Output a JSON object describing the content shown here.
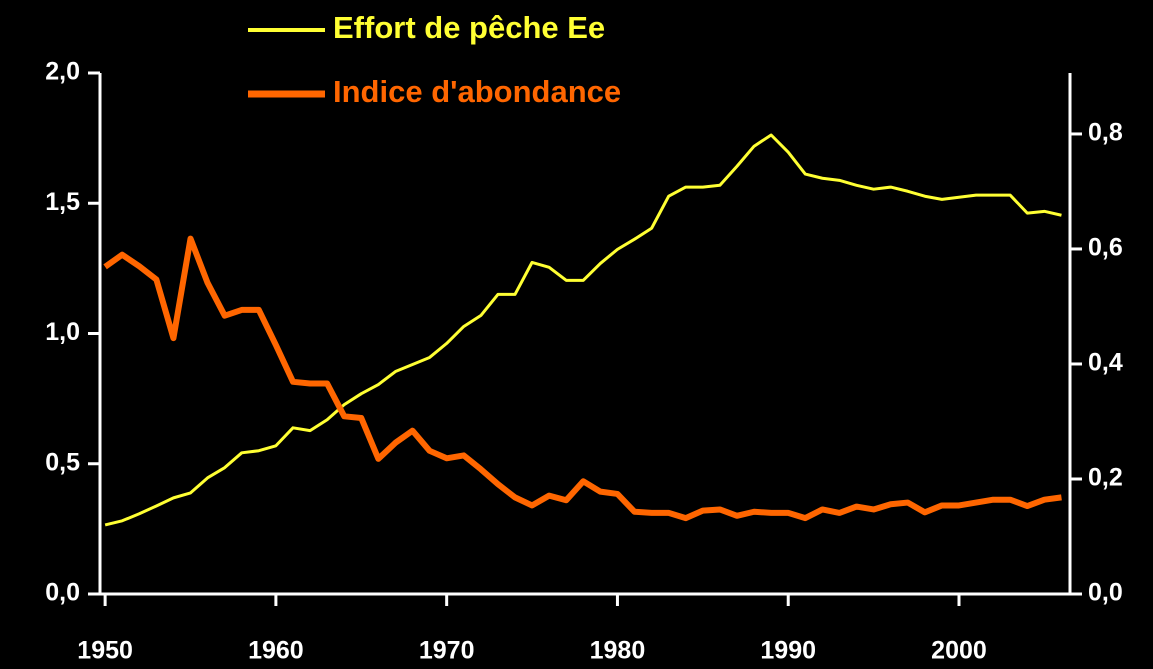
{
  "chart_data": {
    "type": "line",
    "x": [
      1950,
      1951,
      1952,
      1953,
      1954,
      1955,
      1956,
      1957,
      1958,
      1959,
      1960,
      1961,
      1962,
      1963,
      1964,
      1965,
      1966,
      1967,
      1968,
      1969,
      1970,
      1971,
      1972,
      1973,
      1974,
      1975,
      1976,
      1977,
      1978,
      1979,
      1980,
      1981,
      1982,
      1983,
      1984,
      1985,
      1986,
      1987,
      1988,
      1989,
      1990,
      1991,
      1992,
      1993,
      1994,
      1995,
      1996,
      1997,
      1998,
      1999,
      2000,
      2001,
      2002,
      2003,
      2004,
      2005,
      2006
    ],
    "series": [
      {
        "name": "Effort de pêche Ee",
        "color": "#ffff33",
        "axis": "y",
        "values": [
          0.265,
          0.281,
          0.308,
          0.338,
          0.369,
          0.388,
          0.446,
          0.485,
          0.542,
          0.55,
          0.569,
          0.638,
          0.627,
          0.669,
          0.727,
          0.769,
          0.804,
          0.854,
          0.881,
          0.908,
          0.962,
          1.027,
          1.069,
          1.15,
          1.15,
          1.273,
          1.254,
          1.204,
          1.204,
          1.269,
          1.323,
          1.362,
          1.404,
          1.527,
          1.562,
          1.562,
          1.569,
          1.642,
          1.719,
          1.762,
          1.696,
          1.612,
          1.596,
          1.588,
          1.569,
          1.554,
          1.562,
          1.546,
          1.527,
          1.515,
          1.523,
          1.531,
          1.531,
          1.531,
          1.462,
          1.469,
          1.454
        ]
      },
      {
        "name": "Indice d'abondance",
        "color": "#ff6600",
        "axis": "y2",
        "values": [
          0.569,
          0.59,
          0.57,
          0.547,
          0.445,
          0.618,
          0.541,
          0.484,
          0.494,
          0.494,
          0.433,
          0.369,
          0.366,
          0.366,
          0.309,
          0.306,
          0.235,
          0.263,
          0.284,
          0.249,
          0.236,
          0.241,
          0.217,
          0.191,
          0.168,
          0.154,
          0.171,
          0.163,
          0.196,
          0.178,
          0.174,
          0.143,
          0.141,
          0.141,
          0.132,
          0.145,
          0.147,
          0.136,
          0.143,
          0.141,
          0.141,
          0.132,
          0.147,
          0.141,
          0.152,
          0.147,
          0.156,
          0.159,
          0.142,
          0.154,
          0.154,
          0.159,
          0.164,
          0.164,
          0.153,
          0.164,
          0.168
        ]
      }
    ],
    "xlim": [
      1949.7,
      2006.5
    ],
    "xticks": [
      1950,
      1960,
      1970,
      1980,
      1990,
      2000
    ],
    "ylim": [
      0,
      2.0
    ],
    "yticks": [
      {
        "value": 0,
        "label": "0,0"
      },
      {
        "value": 0.5,
        "label": "0,5"
      },
      {
        "value": 1.0,
        "label": "1,0"
      },
      {
        "value": 1.5,
        "label": "1,5"
      },
      {
        "value": 2.0,
        "label": "2,0"
      }
    ],
    "y2lim": [
      0,
      0.906
    ],
    "y2ticks": [
      {
        "value": 0,
        "label": "0,0"
      },
      {
        "value": 0.2,
        "label": "0,2"
      },
      {
        "value": 0.4,
        "label": "0,4"
      },
      {
        "value": 0.6,
        "label": "0,6"
      },
      {
        "value": 0.8,
        "label": "0,8"
      }
    ],
    "legend": "top"
  }
}
